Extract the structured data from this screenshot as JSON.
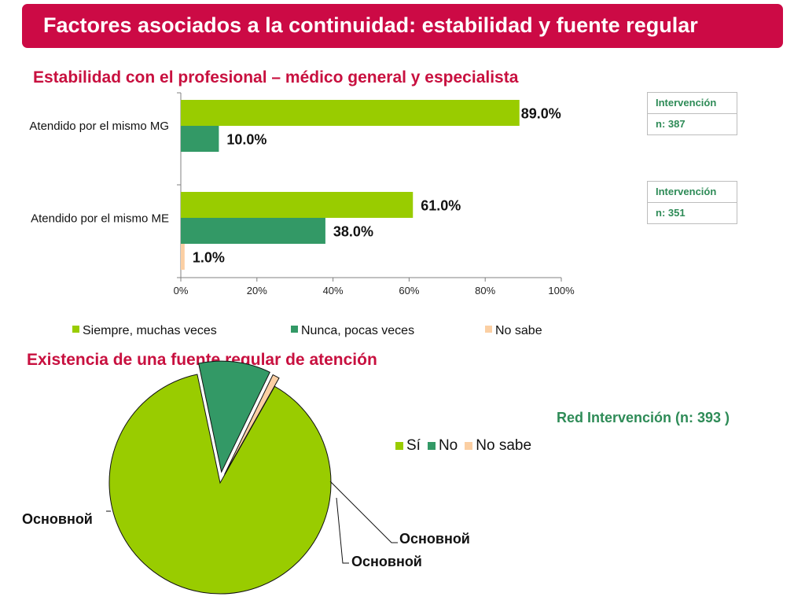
{
  "header": {
    "title": "Factores asociados a la continuidad: estabilidad y fuente regular"
  },
  "colors": {
    "siempre": "#99cc00",
    "nunca": "#339966",
    "nosabe": "#fbcfa3",
    "brand": "#cc0a45"
  },
  "boxes": [
    {
      "label": "Intervención",
      "n": "n: 387"
    },
    {
      "label": "Intervención",
      "n": "n: 351"
    }
  ],
  "pie_header": "Red Intervención (n: 393 )",
  "chart_data": [
    {
      "type": "bar",
      "orientation": "horizontal",
      "title": "Estabilidad con el profesional – médico general y especialista",
      "categories": [
        "Atendido por el mismo MG",
        "Atendido por el mismo ME"
      ],
      "series": [
        {
          "name": "Siempre, muchas veces",
          "values": [
            89.0,
            61.0
          ],
          "labels": [
            "89.0%",
            "61.0%"
          ]
        },
        {
          "name": "Nunca, pocas veces",
          "values": [
            10.0,
            38.0
          ],
          "labels": [
            "10.0%",
            "38.0%"
          ]
        },
        {
          "name": "No sabe",
          "values": [
            null,
            1.0
          ],
          "labels": [
            "",
            "1.0%"
          ]
        }
      ],
      "xlim": [
        0,
        100
      ],
      "xticks": [
        "0%",
        "20%",
        "40%",
        "60%",
        "80%",
        "100%"
      ],
      "legend_position": "bottom",
      "grid": false
    },
    {
      "type": "pie",
      "title": "Existencia de una fuente regular de atención",
      "labels": [
        "Sí",
        "No",
        "No sabe"
      ],
      "values": [
        88.5,
        10.5,
        1.0
      ],
      "slice_labels": [
        "Основной",
        "Основной",
        "Основной"
      ],
      "exploded": [
        "No",
        "No sabe"
      ],
      "legend_position": "right"
    }
  ]
}
